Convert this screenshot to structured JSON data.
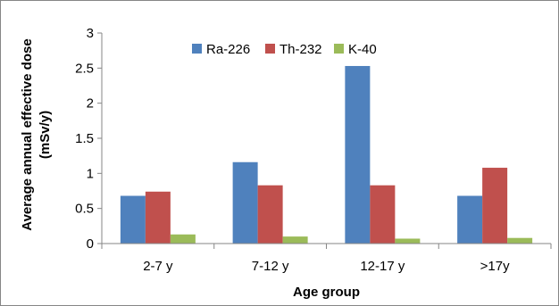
{
  "chart_data": {
    "type": "bar",
    "categories": [
      "2-7 y",
      "7-12 y",
      "12-17 y",
      ">17y"
    ],
    "series": [
      {
        "name": "Ra-226",
        "color": "#4F81BD",
        "values": [
          0.68,
          1.16,
          2.53,
          0.68
        ]
      },
      {
        "name": "Th-232",
        "color": "#C0504D",
        "values": [
          0.74,
          0.83,
          0.83,
          1.08
        ]
      },
      {
        "name": "K-40",
        "color": "#9BBB59",
        "values": [
          0.13,
          0.1,
          0.07,
          0.08
        ]
      }
    ],
    "title": "",
    "xlabel": "Age group",
    "ylabel": [
      "Average annual effective dose",
      "(mSv/y)"
    ],
    "ylim": [
      0,
      3
    ],
    "yticks": [
      "0",
      "0.5",
      "1",
      "1.5",
      "2",
      "2.5",
      "3"
    ],
    "grid": false,
    "legend_position": "top-center"
  }
}
